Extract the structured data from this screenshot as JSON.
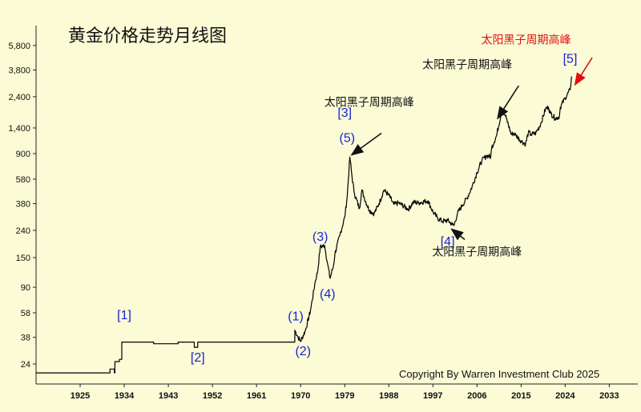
{
  "chart_data": {
    "type": "line",
    "title": "黄金价格走势月线图",
    "xlabel": "",
    "ylabel": "",
    "y_scale": "log",
    "ylim": [
      17,
      6200
    ],
    "xlim": [
      1916,
      2038
    ],
    "grid": false,
    "x_ticks": [
      "1925",
      "1934",
      "1943",
      "1952",
      "1961",
      "1970",
      "1979",
      "1988",
      "1997",
      "2006",
      "2015",
      "2024",
      "2033"
    ],
    "y_ticks": [
      "24",
      "38",
      "58",
      "90",
      "150",
      "240",
      "380",
      "580",
      "900",
      "1,400",
      "2,400",
      "3,800",
      "5,800"
    ],
    "series": [
      {
        "x": [
          1916,
          1931,
          1931.1,
          1932,
          1932.1,
          1933,
          1933.5,
          1934,
          1938,
          1940,
          1945,
          1948,
          1948.3,
          1949,
          1949.3,
          1955,
          1960,
          1965,
          1968,
          1968.8,
          1969.5,
          1970,
          1971,
          1972,
          1973,
          1973.5,
          1974,
          1974.9,
          1975.5,
          1976,
          1976.7,
          1977,
          1978,
          1979,
          1979.5,
          1980.05,
          1980.5,
          1981,
          1982,
          1982.5,
          1983,
          1984,
          1985,
          1986,
          1987,
          1988,
          1989,
          1990,
          1992,
          1993,
          1994,
          1996,
          1997,
          1998,
          1999,
          2000,
          2001,
          2001.3,
          2002,
          2003,
          2004,
          2005,
          2006,
          2007,
          2008,
          2008.8,
          2009,
          2010,
          2011,
          2011.7,
          2012,
          2013,
          2013.5,
          2014,
          2015,
          2015.9,
          2016.5,
          2017,
          2018,
          2019,
          2020,
          2020.6,
          2021,
          2022,
          2022.8,
          2023,
          2024,
          2025,
          2025.3
        ],
        "values": [
          20.6,
          20.6,
          22,
          20.6,
          25,
          26,
          35,
          35,
          35,
          34,
          35,
          35,
          32,
          35,
          35,
          35,
          35,
          35,
          35,
          43,
          38,
          35.5,
          43,
          60,
          100,
          120,
          180,
          185,
          135,
          105,
          130,
          160,
          220,
          300,
          430,
          850,
          600,
          450,
          350,
          480,
          420,
          340,
          320,
          380,
          480,
          440,
          375,
          385,
          345,
          390,
          385,
          400,
          330,
          295,
          280,
          285,
          265,
          260,
          320,
          370,
          420,
          510,
          650,
          800,
          870,
          850,
          1000,
          1230,
          1850,
          1750,
          1650,
          1250,
          1280,
          1230,
          1120,
          1060,
          1300,
          1250,
          1280,
          1500,
          1950,
          2000,
          1800,
          1650,
          1700,
          2000,
          2350,
          2700,
          3400
        ]
      }
    ],
    "annotations": [
      {
        "text": "[1]",
        "x": 1934,
        "y": 52
      },
      {
        "text": "[2]",
        "x": 1949,
        "y": 25
      },
      {
        "text": "(1)",
        "x": 1969,
        "y": 51
      },
      {
        "text": "(2)",
        "x": 1970.5,
        "y": 28
      },
      {
        "text": "(3)",
        "x": 1974,
        "y": 200
      },
      {
        "text": "(4)",
        "x": 1975.5,
        "y": 75
      },
      {
        "text": "[3]",
        "x": 1979,
        "y": 1700
      },
      {
        "text": "(5)",
        "x": 1979.5,
        "y": 1100
      },
      {
        "text": "[4]",
        "x": 2000,
        "y": 185
      },
      {
        "text": "[5]",
        "x": 2025,
        "y": 4300
      },
      {
        "text": "太阳黑子周期高峰",
        "x": 1984,
        "y": 2050
      },
      {
        "text": "太阳黑子周期高峰",
        "x": 2004,
        "y": 3900
      },
      {
        "text": "太阳黑子周期高峰",
        "x": 2006,
        "y": 155
      },
      {
        "text": "太阳黑子周期高峰",
        "x": 2016,
        "y": 6000
      }
    ],
    "colors": {
      "background": "#fbfbd6",
      "line": "#000000",
      "wave_label": "#1a22d8",
      "highlight": "#e01010"
    }
  },
  "copyright": "Copyright By Warren Investment Club 2025"
}
